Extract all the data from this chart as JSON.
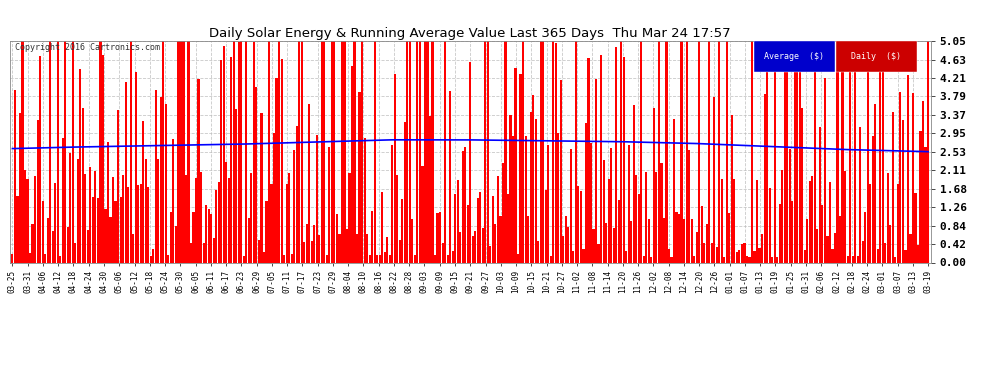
{
  "title": "Daily Solar Energy & Running Average Value Last 365 Days  Thu Mar 24 17:57",
  "copyright": "Copyright 2016 Cartronics.com",
  "bar_color": "#ff0000",
  "avg_color": "#0000ff",
  "bg_color": "#ffffff",
  "grid_color": "#bbbbbb",
  "ylim": [
    0.0,
    5.05
  ],
  "yticks": [
    0.0,
    0.42,
    0.84,
    1.26,
    1.68,
    2.11,
    2.53,
    2.95,
    3.37,
    3.79,
    4.21,
    4.63,
    5.05
  ],
  "legend_avg_bg": "#0000cc",
  "legend_daily_bg": "#cc0000",
  "legend_avg_text": "Average  ($)",
  "legend_daily_text": "Daily  ($)",
  "xtick_labels": [
    "03-25",
    "03-31",
    "04-06",
    "04-12",
    "04-18",
    "04-24",
    "04-30",
    "05-06",
    "05-12",
    "05-18",
    "05-24",
    "05-30",
    "06-05",
    "06-11",
    "06-17",
    "06-23",
    "06-29",
    "07-05",
    "07-11",
    "07-17",
    "07-23",
    "07-29",
    "08-04",
    "08-10",
    "08-16",
    "08-22",
    "08-28",
    "09-03",
    "09-09",
    "09-15",
    "09-21",
    "09-27",
    "10-03",
    "10-09",
    "10-15",
    "10-21",
    "10-27",
    "11-02",
    "11-08",
    "11-14",
    "11-20",
    "11-26",
    "12-02",
    "12-08",
    "12-14",
    "12-20",
    "12-26",
    "01-01",
    "01-07",
    "01-13",
    "01-19",
    "01-25",
    "01-31",
    "02-06",
    "02-12",
    "02-18",
    "02-24",
    "03-01",
    "03-07",
    "03-13",
    "03-19"
  ],
  "n_days": 365,
  "avg_keypoints_x": [
    0,
    20,
    40,
    60,
    90,
    120,
    150,
    180,
    210,
    240,
    270,
    300,
    330,
    364
  ],
  "avg_keypoints_y": [
    2.6,
    2.63,
    2.65,
    2.67,
    2.7,
    2.75,
    2.8,
    2.8,
    2.78,
    2.76,
    2.72,
    2.65,
    2.58,
    2.53
  ]
}
